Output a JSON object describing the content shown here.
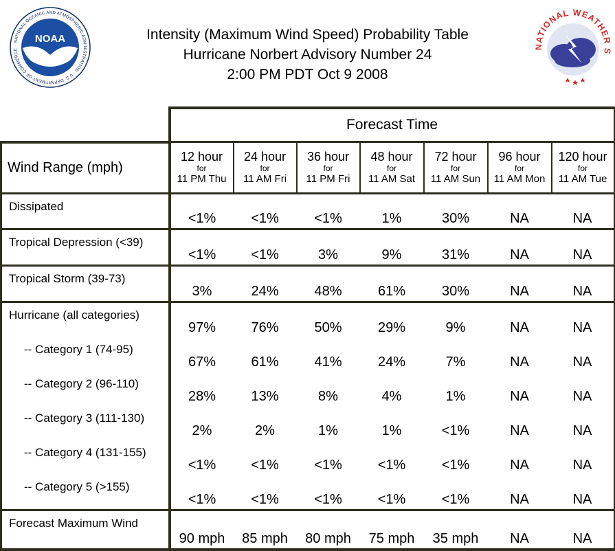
{
  "header": {
    "title_line1": "Intensity (Maximum Wind Speed) Probability Table",
    "title_line2": "Hurricane Norbert Advisory Number 24",
    "title_line3": "2:00 PM PDT Oct 9 2008",
    "noaa_logo": {
      "center_text": "NOAA",
      "ring_text": "NATIONAL OCEANIC AND ATMOSPHERIC ADMINISTRATION · U.S. DEPARTMENT OF COMMERCE"
    },
    "nws_logo": {
      "ring_text": "NATIONAL WEATHER SERVICE"
    }
  },
  "table": {
    "row_header_label": "Wind Range (mph)",
    "forecast_time_label": "Forecast Time",
    "periods": [
      {
        "hours": "12 hour",
        "for": "for",
        "time": "11 PM Thu"
      },
      {
        "hours": "24 hour",
        "for": "for",
        "time": "11 AM Fri"
      },
      {
        "hours": "36 hour",
        "for": "for",
        "time": "11 PM Fri"
      },
      {
        "hours": "48 hour",
        "for": "for",
        "time": "11 AM Sat"
      },
      {
        "hours": "72 hour",
        "for": "for",
        "time": "11 AM Sun"
      },
      {
        "hours": "96 hour",
        "for": "for",
        "time": "11 AM Mon"
      },
      {
        "hours": "120 hour",
        "for": "for",
        "time": "11 AM Tue"
      }
    ],
    "rows": [
      {
        "label": "Dissipated",
        "values": [
          "<1%",
          "<1%",
          "<1%",
          "1%",
          "30%",
          "NA",
          "NA"
        ]
      },
      {
        "label": "Tropical Depression (<39)",
        "values": [
          "<1%",
          "<1%",
          "3%",
          "9%",
          "31%",
          "NA",
          "NA"
        ]
      },
      {
        "label": "Tropical Storm (39-73)",
        "values": [
          "3%",
          "24%",
          "48%",
          "61%",
          "30%",
          "NA",
          "NA"
        ]
      },
      {
        "label": "Hurricane (all categories)",
        "values": [
          "97%",
          "76%",
          "50%",
          "29%",
          "9%",
          "NA",
          "NA"
        ]
      },
      {
        "label": "-- Category 1 (74-95)",
        "values": [
          "67%",
          "61%",
          "41%",
          "24%",
          "7%",
          "NA",
          "NA"
        ]
      },
      {
        "label": "-- Category 2 (96-110)",
        "values": [
          "28%",
          "13%",
          "8%",
          "4%",
          "1%",
          "NA",
          "NA"
        ]
      },
      {
        "label": "-- Category 3 (111-130)",
        "values": [
          "2%",
          "2%",
          "1%",
          "1%",
          "<1%",
          "NA",
          "NA"
        ]
      },
      {
        "label": "-- Category 4 (131-155)",
        "values": [
          "<1%",
          "<1%",
          "<1%",
          "<1%",
          "<1%",
          "NA",
          "NA"
        ]
      },
      {
        "label": "-- Category 5 (>155)",
        "values": [
          "<1%",
          "<1%",
          "<1%",
          "<1%",
          "<1%",
          "NA",
          "NA"
        ]
      },
      {
        "label": "Forecast Maximum Wind",
        "values": [
          "90 mph",
          "85 mph",
          "80 mph",
          "75 mph",
          "35 mph",
          "NA",
          "NA"
        ]
      }
    ]
  },
  "colors": {
    "border": "#2e2e1e",
    "noaa_blue": "#1c4fa3",
    "noaa_navy": "#0d2a6b",
    "nws_red": "#d42a2a",
    "nws_cloud": "#3a3f9a"
  }
}
